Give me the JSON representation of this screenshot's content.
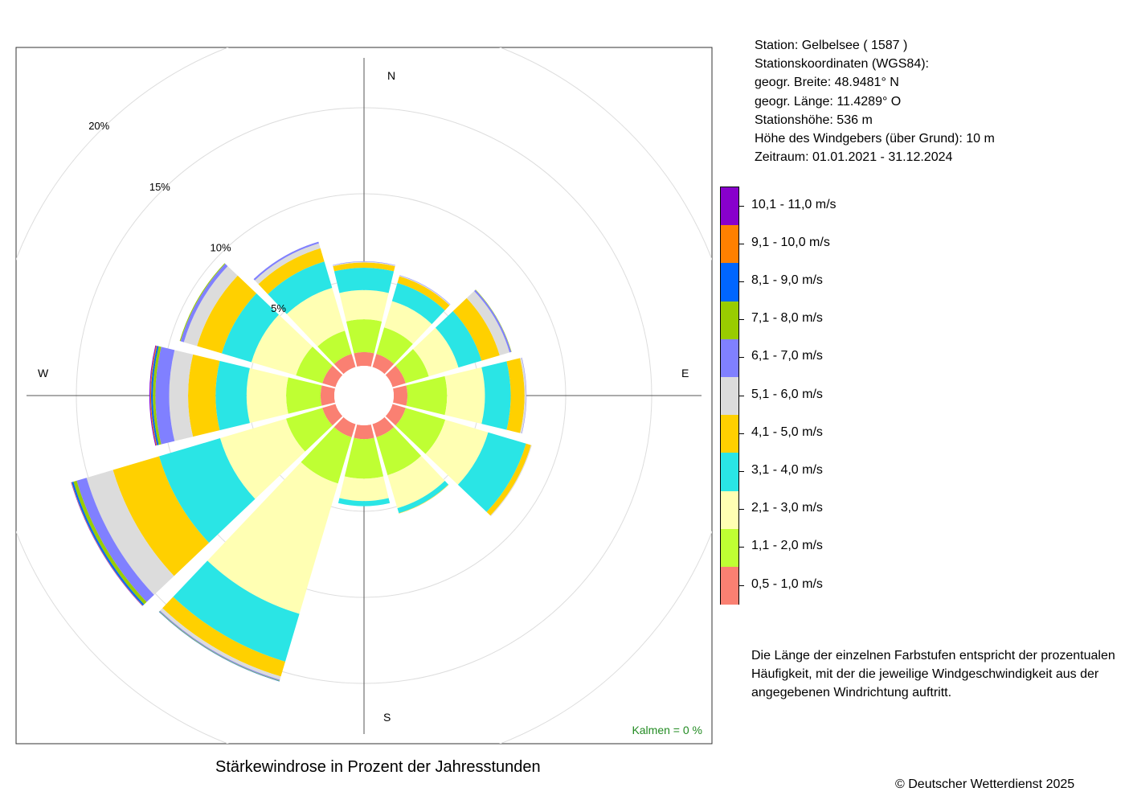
{
  "chart_data": {
    "type": "windrose",
    "directions_deg": [
      0,
      30,
      60,
      90,
      120,
      150,
      180,
      210,
      240,
      270,
      300,
      330
    ],
    "units": "%",
    "radial_max": 20,
    "radial_ticks": [
      5,
      10,
      15,
      20
    ],
    "radial_tick_labels": [
      "5%",
      "10%",
      "15%",
      "20%"
    ],
    "compass_labels": {
      "n": "N",
      "e": "E",
      "s": "S",
      "w": "W"
    },
    "calm_label": "Kalmen  =  0 %",
    "caption": "Stärkewindrose in Prozent der Jahresstunden",
    "speed_classes": [
      {
        "label": "0,5 - 1,0 m/s",
        "color": "#fa8072"
      },
      {
        "label": "1,1 - 2,0 m/s",
        "color": "#bfff33"
      },
      {
        "label": "2,1 - 3,0 m/s",
        "color": "#ffffb3"
      },
      {
        "label": "3,1 - 4,0 m/s",
        "color": "#2ae5e5"
      },
      {
        "label": "4,1 - 5,0 m/s",
        "color": "#ffd000"
      },
      {
        "label": "5,1 - 6,0 m/s",
        "color": "#dcdcdc"
      },
      {
        "label": "6,1 - 7,0 m/s",
        "color": "#8080ff"
      },
      {
        "label": "7,1 - 8,0 m/s",
        "color": "#99cc00"
      },
      {
        "label": "8,1 - 9,0 m/s",
        "color": "#0066ff"
      },
      {
        "label": "9,1 - 10,0 m/s",
        "color": "#ff8000"
      },
      {
        "label": "10,1 - 11,0 m/s",
        "color": "#8800cc"
      }
    ],
    "values": [
      [
        0.8,
        1.9,
        1.7,
        1.3,
        0.3,
        0.05,
        0.02,
        0.0,
        0.0,
        0.0,
        0.0
      ],
      [
        0.8,
        1.6,
        1.6,
        1.1,
        0.4,
        0.05,
        0.02,
        0.0,
        0.0,
        0.0,
        0.0
      ],
      [
        0.8,
        1.4,
        1.8,
        1.4,
        1.1,
        0.6,
        0.1,
        0.02,
        0.0,
        0.0,
        0.0
      ],
      [
        0.8,
        2.3,
        2.2,
        1.5,
        0.8,
        0.1,
        0.02,
        0.0,
        0.0,
        0.0,
        0.0
      ],
      [
        0.8,
        2.4,
        2.6,
        2.3,
        0.3,
        0.05,
        0.0,
        0.0,
        0.0,
        0.0,
        0.0
      ],
      [
        0.8,
        2.3,
        2.0,
        0.3,
        0.02,
        0.0,
        0.0,
        0.0,
        0.0,
        0.0,
        0.0
      ],
      [
        0.8,
        2.3,
        1.3,
        0.3,
        0.0,
        0.0,
        0.0,
        0.0,
        0.0,
        0.0,
        0.0
      ],
      [
        0.8,
        2.8,
        7.9,
        2.9,
        0.9,
        0.2,
        0.05,
        0.03,
        0.02,
        0.0,
        0.0
      ],
      [
        0.8,
        2.2,
        4.0,
        3.7,
        2.8,
        1.6,
        0.6,
        0.2,
        0.1,
        0.02,
        0.02
      ],
      [
        0.8,
        2.0,
        2.3,
        1.8,
        1.6,
        1.1,
        0.8,
        0.15,
        0.1,
        0.05,
        0.05
      ],
      [
        0.8,
        1.6,
        2.7,
        1.8,
        1.5,
        0.8,
        0.2,
        0.05,
        0.0,
        0.0,
        0.0
      ],
      [
        0.8,
        1.4,
        2.6,
        1.6,
        0.8,
        0.3,
        0.1,
        0.0,
        0.0,
        0.0,
        0.0
      ]
    ]
  },
  "station": {
    "line1": "Station:  Gelbelsee  ( 1587 )",
    "line2": "Stationskoordinaten (WGS84):",
    "line3": "geogr. Breite: 48.9481° N",
    "line4": "geogr. Länge: 11.4289° O",
    "line5": "Stationshöhe: 536 m",
    "line6": "Höhe des Windgebers (über Grund): 10 m",
    "line7": "Zeitraum: 01.01.2021 - 31.12.2024"
  },
  "note": "Die Länge der einzelnen Farbstufen entspricht der prozentualen Häufigkeit, mit der die jeweilige Windgeschwindigkeit aus der angegebenen Windrichtung auftritt.",
  "copyright": "© Deutscher Wetterdienst  2025"
}
